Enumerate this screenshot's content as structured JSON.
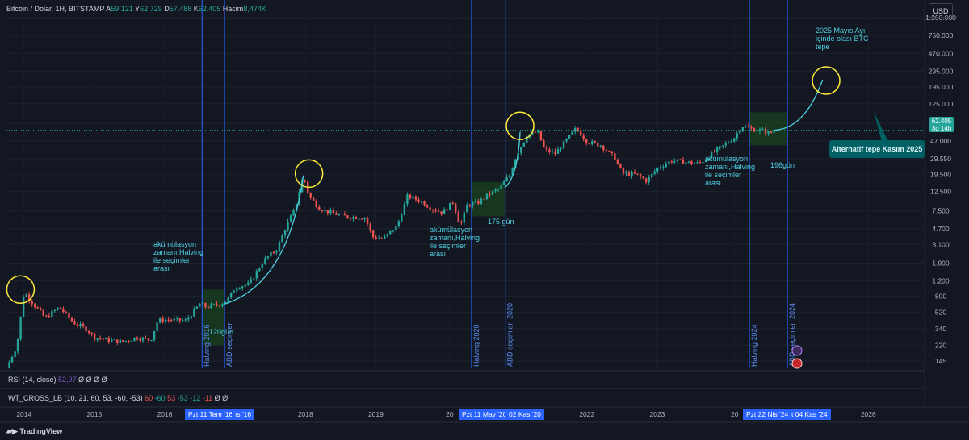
{
  "header": {
    "symbol": "Bitcoin / Dolar, 1H, BITSTAMP",
    "open_label": "A",
    "open": "59.121",
    "high_label": "Y",
    "high": "62.729",
    "low_label": "D",
    "low": "57.488",
    "close_label": "K",
    "close": "62.405",
    "volume_label": "Hacim",
    "volume": "8,474K"
  },
  "currency_button": "USD",
  "price_tag": {
    "price": "62.405",
    "countdown": "3d 14h"
  },
  "indicators": {
    "rsi": {
      "label": "RSI (14, close)",
      "values": "Ø Ø Ø Ø",
      "current": "52,97"
    },
    "wt": {
      "label": "WT_CROSS_LB (10, 21, 60, 53, -60, -53)",
      "v1": "60",
      "v2": "-60",
      "v3": "53",
      "v4": "-53",
      "v5": "-12",
      "v6": "-11",
      "v7": "Ø Ø"
    }
  },
  "branding": "TradingView",
  "colors": {
    "background": "#131722",
    "up": "#26a69a",
    "down": "#ef5350",
    "vline": "#2962ff",
    "annotation": "#4dd0e1",
    "circle": "#ffeb3b",
    "zone": "#1b5e20"
  },
  "chart_data": {
    "type": "candlestick",
    "title": "Bitcoin / Dolar",
    "y_scale": "log",
    "ylim": [
      120,
      1200000
    ],
    "xlim": [
      2013.75,
      2026.8
    ],
    "y_ticks": [
      "1.200.000",
      "750.000",
      "470.000",
      "295.000",
      "195.000",
      "125.000",
      "75.000",
      "47.000",
      "29.550",
      "19.500",
      "12.500",
      "7.500",
      "4.700",
      "3.100",
      "1.900",
      "1.200",
      "800",
      "520",
      "340",
      "220",
      "145"
    ],
    "x_ticks": [
      "2014",
      "2015",
      "2016",
      "2018",
      "2019",
      "20",
      "2022",
      "2023",
      "20",
      "2026"
    ],
    "series": [
      {
        "name": "BTC/USD",
        "points": [
          [
            2013.75,
            120
          ],
          [
            2013.9,
            220
          ],
          [
            2014.0,
            900
          ],
          [
            2014.1,
            700
          ],
          [
            2014.3,
            450
          ],
          [
            2014.5,
            600
          ],
          [
            2014.7,
            400
          ],
          [
            2014.9,
            330
          ],
          [
            2015.0,
            270
          ],
          [
            2015.2,
            250
          ],
          [
            2015.4,
            240
          ],
          [
            2015.6,
            270
          ],
          [
            2015.8,
            250
          ],
          [
            2015.9,
            420
          ],
          [
            2016.0,
            430
          ],
          [
            2016.3,
            420
          ],
          [
            2016.5,
            650
          ],
          [
            2016.6,
            600
          ],
          [
            2016.8,
            650
          ],
          [
            2016.9,
            740
          ],
          [
            2017.0,
            1000
          ],
          [
            2017.2,
            1100
          ],
          [
            2017.4,
            2000
          ],
          [
            2017.6,
            2800
          ],
          [
            2017.7,
            4500
          ],
          [
            2017.85,
            8000
          ],
          [
            2017.97,
            19000
          ],
          [
            2018.05,
            11000
          ],
          [
            2018.2,
            8000
          ],
          [
            2018.4,
            7000
          ],
          [
            2018.6,
            6400
          ],
          [
            2018.85,
            6300
          ],
          [
            2018.95,
            3800
          ],
          [
            2019.1,
            3600
          ],
          [
            2019.3,
            5000
          ],
          [
            2019.45,
            11000
          ],
          [
            2019.6,
            10000
          ],
          [
            2019.8,
            8000
          ],
          [
            2019.95,
            7200
          ],
          [
            2020.1,
            9500
          ],
          [
            2020.2,
            5000
          ],
          [
            2020.3,
            8800
          ],
          [
            2020.45,
            9300
          ],
          [
            2020.6,
            11500
          ],
          [
            2020.75,
            13500
          ],
          [
            2020.9,
            19000
          ],
          [
            2021.0,
            33000
          ],
          [
            2021.15,
            55000
          ],
          [
            2021.3,
            60000
          ],
          [
            2021.4,
            37000
          ],
          [
            2021.55,
            34000
          ],
          [
            2021.7,
            47000
          ],
          [
            2021.85,
            66000
          ],
          [
            2022.0,
            46000
          ],
          [
            2022.2,
            42000
          ],
          [
            2022.4,
            30000
          ],
          [
            2022.5,
            20000
          ],
          [
            2022.7,
            19500
          ],
          [
            2022.85,
            16500
          ],
          [
            2023.0,
            23000
          ],
          [
            2023.2,
            28000
          ],
          [
            2023.4,
            27000
          ],
          [
            2023.6,
            26000
          ],
          [
            2023.8,
            35000
          ],
          [
            2023.95,
            42000
          ],
          [
            2024.1,
            52000
          ],
          [
            2024.2,
            70000
          ],
          [
            2024.35,
            64000
          ],
          [
            2024.5,
            62000
          ],
          [
            2024.6,
            57000
          ],
          [
            2024.66,
            62405
          ]
        ]
      }
    ],
    "projections": [
      {
        "label": "2025 Mayıs Ayı\niçinde olası BTC\ntepe",
        "from": [
          2024.66,
          62405
        ],
        "to": [
          2025.35,
          235000
        ]
      },
      {
        "label": "Alternatif tepe Kasım 2025"
      }
    ],
    "vertical_lines": [
      {
        "label": "Halving 2016",
        "date_tag": "Pzt 11 Tem '16",
        "x": 2016.53
      },
      {
        "label": "ABD seçimleri",
        "date_tag": "ıs '16",
        "x": 2016.85
      },
      {
        "label": "Halving 2020",
        "date_tag": "Pzt 11 May '20",
        "x": 2020.36
      },
      {
        "label": "ABD seçimleri 2020",
        "date_tag": "02 Kas '20",
        "x": 2020.84
      },
      {
        "label": "Halving 2024",
        "date_tag": "Pzt 22 Nis '24",
        "x": 2024.31
      },
      {
        "label": "ABD seçimleri 2024",
        "date_tag": "t 04 Kas '24",
        "x": 2024.85
      }
    ],
    "zones": [
      {
        "label": "120gün",
        "x0": 2016.53,
        "x1": 2016.85,
        "y0": 220,
        "y1": 950
      },
      {
        "label": "175 gün",
        "x0": 2020.36,
        "x1": 2020.84,
        "y0": 6500,
        "y1": 16000
      },
      {
        "label": "196gün",
        "x0": 2024.31,
        "x1": 2024.85,
        "y0": 42000,
        "y1": 100000
      }
    ],
    "annotations": [
      {
        "text": "akümülasyon\nzamanı,Halving\nile seçimler\narası",
        "x": 2016.25,
        "y": 3100
      },
      {
        "text": "akümülasyon\nzamanı,Halving\nile seçimler\narası",
        "x": 2019.75,
        "y": 4200
      },
      {
        "text": "akümülasyon\nzamanı,Halving\nile seçimler\narası",
        "x": 2023.6,
        "y": 32000
      }
    ],
    "peak_circles": [
      {
        "x": 2013.95,
        "y": 950
      },
      {
        "x": 2018.05,
        "y": 20000
      },
      {
        "x": 2021.05,
        "y": 70000
      },
      {
        "x": 2025.4,
        "y": 230000
      }
    ]
  }
}
